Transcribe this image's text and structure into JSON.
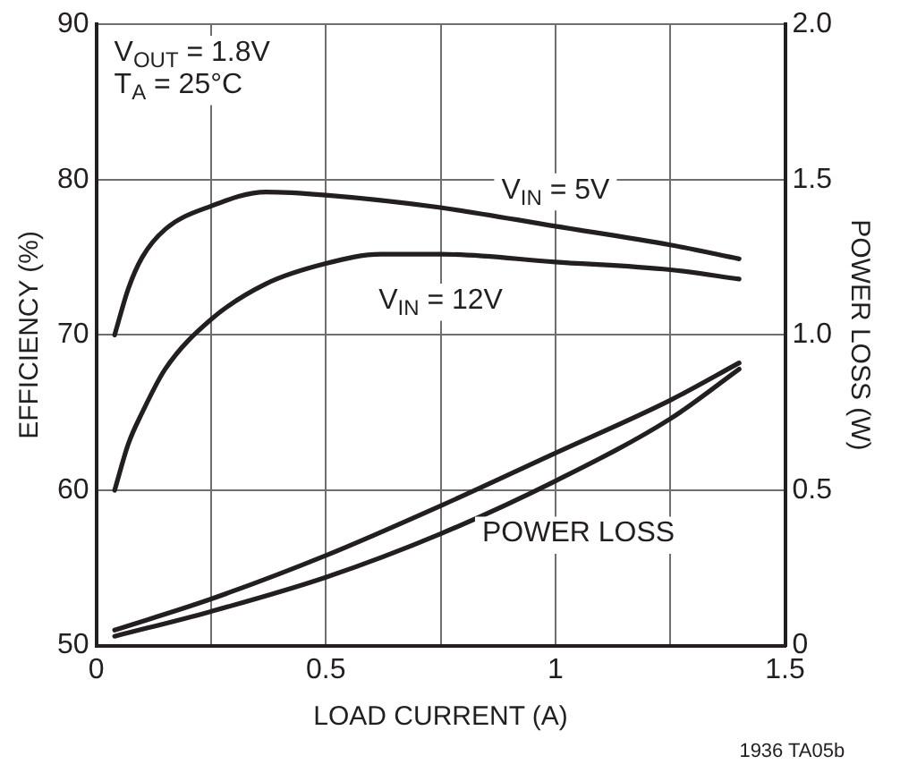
{
  "chart_data": {
    "type": "line",
    "xlabel": "LOAD CURRENT (A)",
    "ylabel": "EFFICIENCY (%)",
    "y2label": "POWER LOSS (W)",
    "annotations": [
      "V$_{OUT}$ = 1.8V",
      "T$_{A}$ = 25°C",
      "POWER LOSS",
      "1936 TA05b"
    ],
    "xlim": [
      0,
      1.5
    ],
    "xticks": [
      0,
      {
        "value": 0.25,
        "label": null
      },
      0.5,
      {
        "value": 0.75,
        "label": null
      },
      1,
      {
        "value": 1.25,
        "label": null
      },
      1.5
    ],
    "ylim": [
      50,
      90
    ],
    "yticks": [
      50,
      60,
      70,
      80,
      90
    ],
    "y2lim": [
      0,
      2
    ],
    "y2ticks": [
      0,
      0.5,
      {
        "value": 1,
        "label": "1.0"
      },
      1.5,
      {
        "value": 2,
        "label": "2.0"
      }
    ],
    "grid": true,
    "legend": false,
    "marker": "none",
    "line_style": "solid",
    "series": [
      {
        "name": "V$_{IN}$ = 5V",
        "color": "#231f20",
        "x": [
          0.04,
          0.07,
          0.1,
          0.15,
          0.25,
          0.37,
          0.5,
          0.75,
          1.0,
          1.25,
          1.4
        ],
        "values": [
          70,
          73,
          75,
          76.8,
          78.3,
          79.2,
          79,
          78.2,
          77,
          75.8,
          74.9
        ]
      },
      {
        "name": "V$_{IN}$ = 12V",
        "color": "#231f20",
        "x": [
          0.04,
          0.07,
          0.1,
          0.15,
          0.25,
          0.37,
          0.5,
          0.62,
          0.75,
          1.0,
          1.25,
          1.4
        ],
        "values": [
          60,
          63,
          65,
          67.8,
          71,
          73.3,
          74.6,
          75.2,
          75.2,
          74.7,
          74.2,
          73.6
        ]
      },
      {
        "color": "#231f20",
        "axis": "y2",
        "x": [
          0.04,
          0.25,
          0.5,
          0.75,
          1.0,
          1.25,
          1.4
        ],
        "values": [
          0.05,
          0.15,
          0.29,
          0.45,
          0.62,
          0.79,
          0.91
        ]
      },
      {
        "color": "#231f20",
        "axis": "y2",
        "x": [
          0.04,
          0.25,
          0.5,
          0.75,
          1.0,
          1.25,
          1.4
        ],
        "values": [
          0.03,
          0.11,
          0.22,
          0.36,
          0.53,
          0.73,
          0.89
        ]
      }
    ]
  }
}
